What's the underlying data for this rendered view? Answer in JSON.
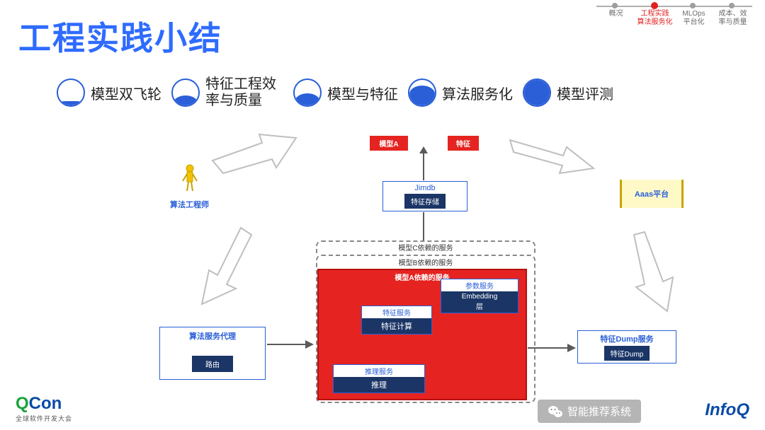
{
  "colors": {
    "title": "#2f6bff",
    "nav_line": "#b0b0b0",
    "nav_dot_inactive": "#9e9e9e",
    "nav_dot_active": "#e02020",
    "nav_label_inactive": "#6b6b6b",
    "nav_label_active": "#e02020",
    "legend_border": "#2a5fd8",
    "legend_fill": "#2a5fd8",
    "legend_text": "#222222",
    "red": "#e52421",
    "red_text": "#ffffff",
    "blue_outline": "#2a5fd8",
    "blue_text": "#2a5fd8",
    "dark_blue_box": "#1b3566",
    "dark_blue_text": "#ffffff",
    "person": "#f2c200",
    "aaas_bg": "#fff9c8",
    "aaas_border": "#c9a300",
    "dashed": "#888888",
    "arrow_gray": "#bfbfbf",
    "arrow_dark": "#5a5a5a",
    "qcon_q": "#1aa33a",
    "qcon_con": "#0a4aa6",
    "infoq": "#0a4aa6"
  },
  "title": "工程实践小结",
  "nav": {
    "items": [
      {
        "line1": "概况",
        "line2": "",
        "active": false
      },
      {
        "line1": "工程实践",
        "line2": "算法服务化",
        "active": true
      },
      {
        "line1": "MLOps",
        "line2": "平台化",
        "active": false
      },
      {
        "line1": "成本、效",
        "line2": "率与质量",
        "active": false
      }
    ]
  },
  "legend": [
    {
      "label": "模型双飞轮",
      "fill_pct": 18
    },
    {
      "label": "特征工程效率与质量",
      "fill_pct": 38,
      "two_line": true
    },
    {
      "label": "模型与特征",
      "fill_pct": 48
    },
    {
      "label": "算法服务化",
      "fill_pct": 78
    },
    {
      "label": "模型评测",
      "fill_pct": 100
    }
  ],
  "person_label": "算法工程师",
  "top_boxes": {
    "model_a": "模型A",
    "feature": "特征"
  },
  "jimdb": {
    "title": "Jimdb",
    "sub": "特征存储"
  },
  "aaas": "Aaas平台",
  "dep_c": "模型C依赖的服务",
  "dep_b": "模型B依赖的服务",
  "panel_title": "模型A依赖的服务",
  "svc_param": {
    "title": "参数服务",
    "sub1": "Embedding",
    "sub2": "层"
  },
  "svc_feat": {
    "title": "特征服务",
    "sub": "特征计算"
  },
  "svc_infer": {
    "title": "推理服务",
    "sub": "推理"
  },
  "proxy": {
    "title": "算法服务代理",
    "sub": "路由"
  },
  "dump": {
    "title": "特征Dump服务",
    "sub": "特征Dump"
  },
  "footer": {
    "qcon_q": "Q",
    "qcon_con": "Con",
    "qcon_sub": "全球软件开发大会",
    "infoq": "InfoQ",
    "wechat": "智能推荐系统"
  }
}
